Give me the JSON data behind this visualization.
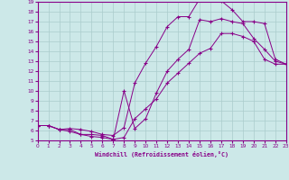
{
  "xlabel": "Windchill (Refroidissement éolien,°C)",
  "bg_color": "#cce8e8",
  "line_color": "#880088",
  "grid_color": "#aacccc",
  "xmin": 0,
  "xmax": 23,
  "ymin": 5,
  "ymax": 19,
  "line1_x": [
    0,
    1,
    2,
    3,
    4,
    5,
    6,
    7,
    8,
    9,
    10,
    11,
    12,
    13,
    14,
    15,
    16,
    17,
    18,
    19,
    20,
    21,
    22,
    23
  ],
  "line1_y": [
    6.5,
    6.5,
    6.1,
    6.1,
    5.6,
    5.4,
    5.3,
    5.1,
    10.0,
    6.2,
    7.2,
    9.8,
    12.0,
    13.2,
    14.2,
    17.2,
    17.0,
    17.3,
    17.0,
    16.8,
    15.3,
    14.2,
    13.0,
    12.7
  ],
  "line2_x": [
    0,
    1,
    2,
    3,
    4,
    5,
    6,
    7,
    8,
    9,
    10,
    11,
    12,
    13,
    14,
    15,
    16,
    17,
    18,
    19,
    20,
    21,
    22,
    23
  ],
  "line2_y": [
    6.5,
    6.5,
    6.1,
    6.2,
    6.1,
    5.9,
    5.6,
    5.5,
    6.3,
    10.8,
    12.8,
    14.5,
    16.5,
    17.5,
    17.5,
    19.3,
    19.4,
    19.1,
    18.2,
    17.0,
    17.0,
    16.8,
    13.2,
    12.7
  ],
  "line3_x": [
    0,
    1,
    2,
    3,
    4,
    5,
    6,
    7,
    8,
    9,
    10,
    11,
    12,
    13,
    14,
    15,
    16,
    17,
    18,
    19,
    20,
    21,
    22,
    23
  ],
  "line3_y": [
    6.5,
    6.5,
    6.1,
    5.9,
    5.6,
    5.6,
    5.5,
    5.1,
    5.3,
    7.2,
    8.2,
    9.2,
    10.8,
    11.8,
    12.8,
    13.8,
    14.3,
    15.8,
    15.8,
    15.5,
    15.0,
    13.2,
    12.7,
    12.7
  ]
}
